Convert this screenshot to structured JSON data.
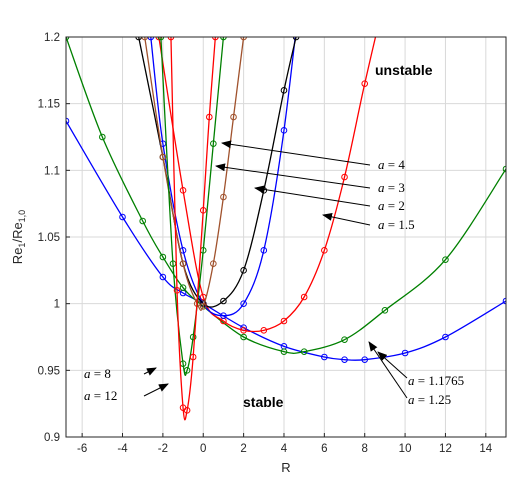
{
  "chart_data": {
    "type": "line",
    "xlabel": "R",
    "ylabel_main": "Re",
    "ylabel_sub1": "1",
    "ylabel_mid": "/Re",
    "ylabel_sub2": "1,0",
    "xlim": [
      -6.8,
      15
    ],
    "ylim": [
      0.9,
      1.2
    ],
    "xticks": [
      -6,
      -4,
      -2,
      0,
      2,
      4,
      6,
      8,
      10,
      12,
      14
    ],
    "yticks": [
      0.9,
      0.95,
      1,
      1.05,
      1.1,
      1.15,
      1.2
    ],
    "grid": true,
    "legend": "none (curves labelled by arrows)",
    "region_labels": {
      "upper": "unstable",
      "lower": "stable"
    },
    "series": [
      {
        "name": "a = 1.1765",
        "color": "#0000ff",
        "x": [
          -6.8,
          -4,
          -2,
          -1,
          0,
          2,
          4,
          6,
          7,
          8,
          10,
          12,
          15
        ],
        "y": [
          1.137,
          1.065,
          1.02,
          1.008,
          1.0,
          0.982,
          0.968,
          0.96,
          0.958,
          0.958,
          0.963,
          0.975,
          1.002
        ]
      },
      {
        "name": "a = 1.25",
        "color": "#008000",
        "x": [
          -6.8,
          -5,
          -3,
          -2,
          -1,
          0,
          2,
          4,
          5,
          7,
          9,
          12,
          15
        ],
        "y": [
          1.2,
          1.125,
          1.062,
          1.035,
          1.012,
          0.998,
          0.975,
          0.964,
          0.964,
          0.973,
          0.995,
          1.033,
          1.101
        ]
      },
      {
        "name": "a = 1.5",
        "color": "#ff0000",
        "x": [
          -2.2,
          -1,
          0,
          1,
          2,
          3,
          4,
          5,
          6,
          7,
          8,
          9
        ],
        "y": [
          1.2,
          1.085,
          1.005,
          0.987,
          0.98,
          0.98,
          0.987,
          1.005,
          1.04,
          1.095,
          1.165,
          1.23
        ]
      },
      {
        "name": "a = 2",
        "color": "#0000ff",
        "x": [
          -2.6,
          -2,
          -1,
          0,
          1,
          2,
          3,
          4,
          5
        ],
        "y": [
          1.2,
          1.12,
          1.04,
          1.0,
          0.991,
          1.0,
          1.04,
          1.13,
          1.26
        ]
      },
      {
        "name": "a = 3",
        "color": "#000000",
        "x": [
          -3.2,
          -2,
          -1,
          0,
          1,
          2,
          3,
          4,
          4.6
        ],
        "y": [
          1.2,
          1.11,
          1.03,
          1.0,
          1.002,
          1.025,
          1.085,
          1.16,
          1.2
        ]
      },
      {
        "name": "a = 4",
        "color": "#a0522d",
        "x": [
          -2.9,
          -2,
          -1,
          -0.3,
          0,
          0.5,
          1,
          1.5,
          2
        ],
        "y": [
          1.2,
          1.11,
          1.03,
          1.0,
          0.998,
          1.03,
          1.08,
          1.14,
          1.2
        ]
      },
      {
        "name": "a = 8",
        "color": "#008000",
        "x": [
          -2.1,
          -1.5,
          -1,
          -0.8,
          -0.5,
          0,
          0.5,
          1
        ],
        "y": [
          1.2,
          1.03,
          0.955,
          0.95,
          0.975,
          1.04,
          1.12,
          1.2
        ]
      },
      {
        "name": "a = 12",
        "color": "#ff0000",
        "x": [
          -1.6,
          -1.3,
          -1,
          -0.8,
          -0.5,
          0,
          0.3,
          0.6
        ],
        "y": [
          1.2,
          1.01,
          0.922,
          0.92,
          0.96,
          1.07,
          1.14,
          1.2
        ]
      }
    ],
    "annotations": [
      {
        "var": "a",
        "rest": " = 4"
      },
      {
        "var": "a",
        "rest": " = 3"
      },
      {
        "var": "a",
        "rest": " = 2"
      },
      {
        "var": "a",
        "rest": " = 1.5"
      },
      {
        "var": "a",
        "rest": " = 8"
      },
      {
        "var": "a",
        "rest": " = 12"
      },
      {
        "var": "a",
        "rest": " = 1.1765"
      },
      {
        "var": "a",
        "rest": " = 1.25"
      }
    ]
  }
}
